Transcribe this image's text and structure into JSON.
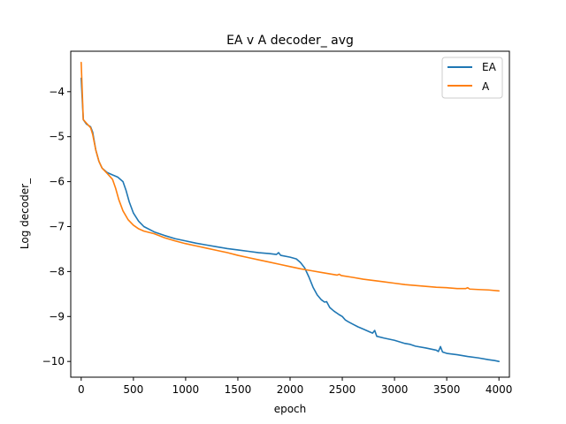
{
  "chart_data": {
    "type": "line",
    "title": "EA v A decoder_ avg",
    "xlabel": "epoch",
    "ylabel": "Log decoder_",
    "xlim": [
      -100,
      4100
    ],
    "ylim": [
      -10.35,
      -3.1
    ],
    "xticks": [
      0,
      500,
      1000,
      1500,
      2000,
      2500,
      3000,
      3500,
      4000
    ],
    "xtick_labels": [
      "0",
      "500",
      "1000",
      "1500",
      "2000",
      "2500",
      "3000",
      "3500",
      "4000"
    ],
    "yticks": [
      -10,
      -9,
      -8,
      -7,
      -6,
      -5,
      -4
    ],
    "ytick_labels": [
      "−10",
      "−9",
      "−8",
      "−7",
      "−6",
      "−5",
      "−4"
    ],
    "grid": false,
    "legend_position": "top-right",
    "series": [
      {
        "name": "EA",
        "color": "#1f77b4",
        "points": [
          [
            0,
            -3.7
          ],
          [
            20,
            -4.62
          ],
          [
            50,
            -4.72
          ],
          [
            90,
            -4.78
          ],
          [
            110,
            -4.9
          ],
          [
            140,
            -5.3
          ],
          [
            170,
            -5.55
          ],
          [
            200,
            -5.7
          ],
          [
            250,
            -5.8
          ],
          [
            300,
            -5.85
          ],
          [
            350,
            -5.9
          ],
          [
            400,
            -6.0
          ],
          [
            430,
            -6.2
          ],
          [
            460,
            -6.45
          ],
          [
            500,
            -6.7
          ],
          [
            550,
            -6.88
          ],
          [
            600,
            -7.0
          ],
          [
            700,
            -7.12
          ],
          [
            800,
            -7.2
          ],
          [
            900,
            -7.27
          ],
          [
            1000,
            -7.32
          ],
          [
            1100,
            -7.37
          ],
          [
            1200,
            -7.41
          ],
          [
            1300,
            -7.45
          ],
          [
            1400,
            -7.49
          ],
          [
            1500,
            -7.52
          ],
          [
            1600,
            -7.55
          ],
          [
            1700,
            -7.58
          ],
          [
            1800,
            -7.6
          ],
          [
            1870,
            -7.62
          ],
          [
            1890,
            -7.58
          ],
          [
            1910,
            -7.64
          ],
          [
            2000,
            -7.68
          ],
          [
            2060,
            -7.72
          ],
          [
            2100,
            -7.8
          ],
          [
            2140,
            -7.92
          ],
          [
            2180,
            -8.12
          ],
          [
            2220,
            -8.35
          ],
          [
            2260,
            -8.52
          ],
          [
            2300,
            -8.63
          ],
          [
            2330,
            -8.68
          ],
          [
            2350,
            -8.67
          ],
          [
            2380,
            -8.8
          ],
          [
            2420,
            -8.88
          ],
          [
            2470,
            -8.96
          ],
          [
            2500,
            -9.0
          ],
          [
            2530,
            -9.08
          ],
          [
            2560,
            -9.12
          ],
          [
            2600,
            -9.17
          ],
          [
            2650,
            -9.23
          ],
          [
            2700,
            -9.28
          ],
          [
            2760,
            -9.34
          ],
          [
            2790,
            -9.37
          ],
          [
            2810,
            -9.31
          ],
          [
            2830,
            -9.44
          ],
          [
            2900,
            -9.48
          ],
          [
            3000,
            -9.53
          ],
          [
            3100,
            -9.6
          ],
          [
            3150,
            -9.62
          ],
          [
            3200,
            -9.66
          ],
          [
            3300,
            -9.7
          ],
          [
            3400,
            -9.75
          ],
          [
            3420,
            -9.78
          ],
          [
            3440,
            -9.67
          ],
          [
            3460,
            -9.79
          ],
          [
            3500,
            -9.82
          ],
          [
            3600,
            -9.85
          ],
          [
            3700,
            -9.89
          ],
          [
            3800,
            -9.92
          ],
          [
            3900,
            -9.96
          ],
          [
            3960,
            -9.98
          ],
          [
            4000,
            -10.0
          ]
        ]
      },
      {
        "name": "A",
        "color": "#ff7f0e",
        "points": [
          [
            0,
            -3.35
          ],
          [
            20,
            -4.62
          ],
          [
            50,
            -4.7
          ],
          [
            90,
            -4.8
          ],
          [
            110,
            -4.95
          ],
          [
            140,
            -5.3
          ],
          [
            170,
            -5.55
          ],
          [
            200,
            -5.7
          ],
          [
            250,
            -5.82
          ],
          [
            300,
            -5.95
          ],
          [
            330,
            -6.15
          ],
          [
            360,
            -6.4
          ],
          [
            400,
            -6.65
          ],
          [
            450,
            -6.85
          ],
          [
            500,
            -6.97
          ],
          [
            550,
            -7.05
          ],
          [
            600,
            -7.1
          ],
          [
            700,
            -7.16
          ],
          [
            800,
            -7.25
          ],
          [
            900,
            -7.32
          ],
          [
            1000,
            -7.38
          ],
          [
            1100,
            -7.43
          ],
          [
            1200,
            -7.48
          ],
          [
            1300,
            -7.53
          ],
          [
            1400,
            -7.58
          ],
          [
            1500,
            -7.64
          ],
          [
            1600,
            -7.69
          ],
          [
            1700,
            -7.74
          ],
          [
            1800,
            -7.79
          ],
          [
            1900,
            -7.84
          ],
          [
            2000,
            -7.89
          ],
          [
            2100,
            -7.94
          ],
          [
            2200,
            -7.98
          ],
          [
            2300,
            -8.02
          ],
          [
            2400,
            -8.06
          ],
          [
            2450,
            -8.08
          ],
          [
            2470,
            -8.06
          ],
          [
            2490,
            -8.09
          ],
          [
            2600,
            -8.13
          ],
          [
            2700,
            -8.17
          ],
          [
            2800,
            -8.2
          ],
          [
            2900,
            -8.23
          ],
          [
            3000,
            -8.26
          ],
          [
            3100,
            -8.29
          ],
          [
            3200,
            -8.31
          ],
          [
            3300,
            -8.33
          ],
          [
            3400,
            -8.35
          ],
          [
            3500,
            -8.36
          ],
          [
            3600,
            -8.38
          ],
          [
            3680,
            -8.38
          ],
          [
            3700,
            -8.36
          ],
          [
            3720,
            -8.39
          ],
          [
            3800,
            -8.4
          ],
          [
            3900,
            -8.41
          ],
          [
            4000,
            -8.43
          ]
        ]
      }
    ]
  }
}
